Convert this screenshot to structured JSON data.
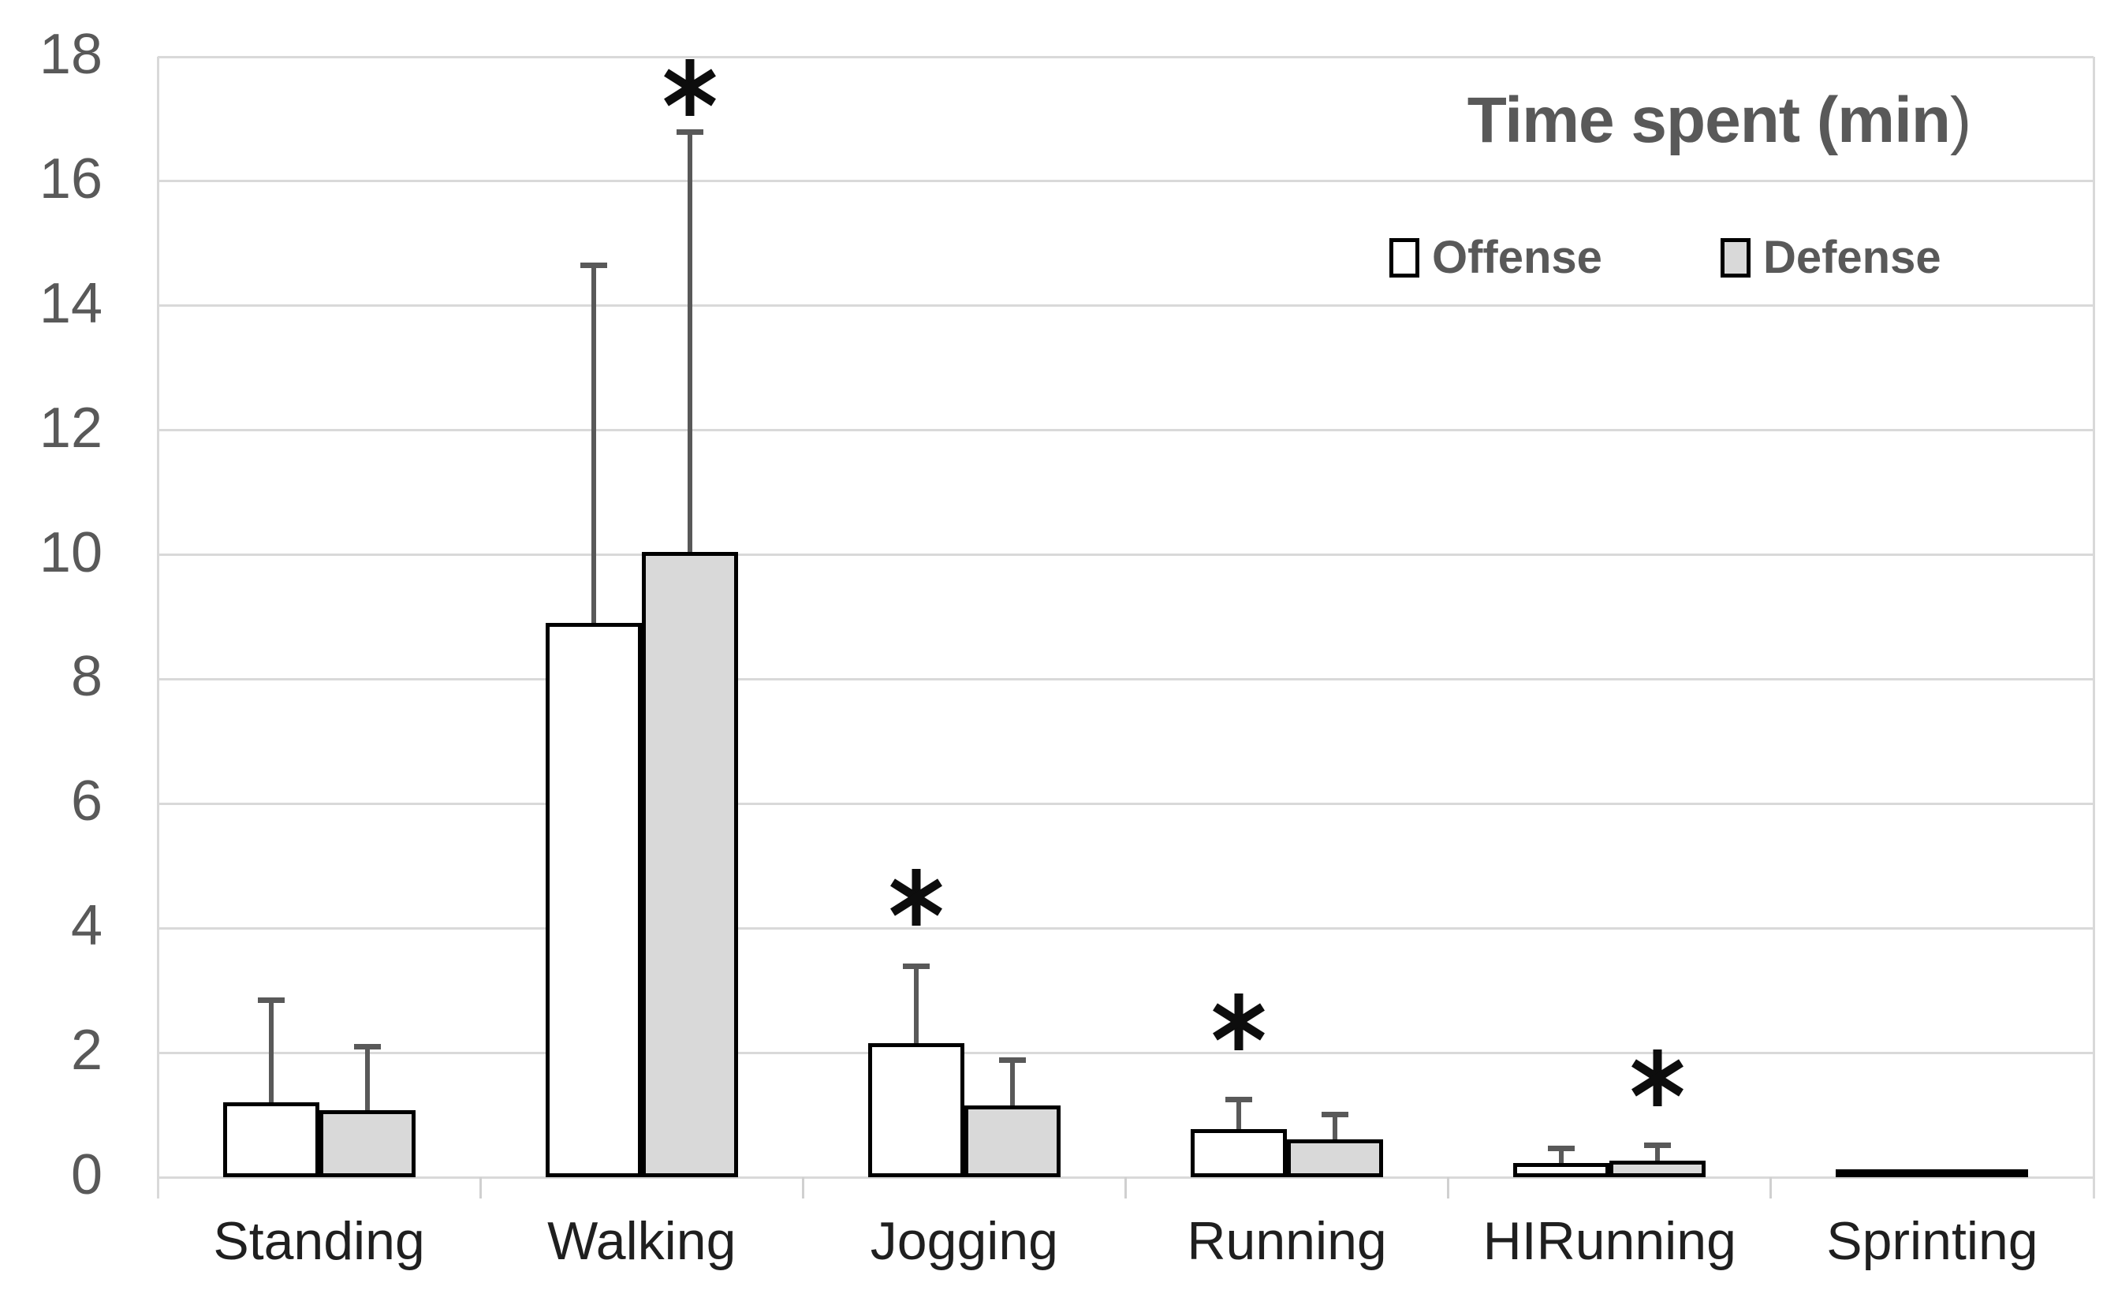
{
  "chart_data": {
    "type": "bar",
    "title": "Time spent (min)",
    "categories": [
      "Standing",
      "Walking",
      "Jogging",
      "Running",
      "HIRunning",
      "Sprinting"
    ],
    "series": [
      {
        "name": "Offense",
        "fill": "#ffffff",
        "values": [
          1.2,
          8.9,
          2.15,
          0.77,
          0.23,
          0.05
        ],
        "error_plus": [
          1.65,
          5.75,
          1.25,
          0.48,
          0.24,
          0.04
        ]
      },
      {
        "name": "Defense",
        "fill": "#d9d9d9",
        "values": [
          1.08,
          10.05,
          1.15,
          0.61,
          0.27,
          0.05
        ],
        "error_plus": [
          1.02,
          6.75,
          0.74,
          0.4,
          0.25,
          0.04
        ]
      }
    ],
    "annotations": [
      {
        "symbol": "*",
        "category": "Walking",
        "series": "Defense",
        "y_value": 17.5
      },
      {
        "symbol": "*",
        "category": "Jogging",
        "series": "Offense",
        "y_value": 4.5
      },
      {
        "symbol": "*",
        "category": "Running",
        "series": "Offense",
        "y_value": 2.5
      },
      {
        "symbol": "*",
        "category": "HIRunning",
        "series": "Defense",
        "y_value": 1.6
      }
    ],
    "y_axis": {
      "min": 0,
      "max": 18,
      "step": 2,
      "tick_labels": [
        "0",
        "2",
        "4",
        "6",
        "8",
        "10",
        "12",
        "14",
        "16",
        "18"
      ]
    },
    "grid": true,
    "legend": {
      "position": "top-right",
      "items": [
        {
          "label": "Offense",
          "fill": "#ffffff"
        },
        {
          "label": "Defense",
          "fill": "#d9d9d9"
        }
      ]
    }
  },
  "style": {
    "title_color": "#595959",
    "axis_text_color": "#595959",
    "category_text_color": "#1f1f1f",
    "gridline_color": "#d9d9d9",
    "bar_border_color": "#000000",
    "error_bar_color": "#595959",
    "asterisk_color": "#0d0d0d",
    "background": "#ffffff"
  }
}
